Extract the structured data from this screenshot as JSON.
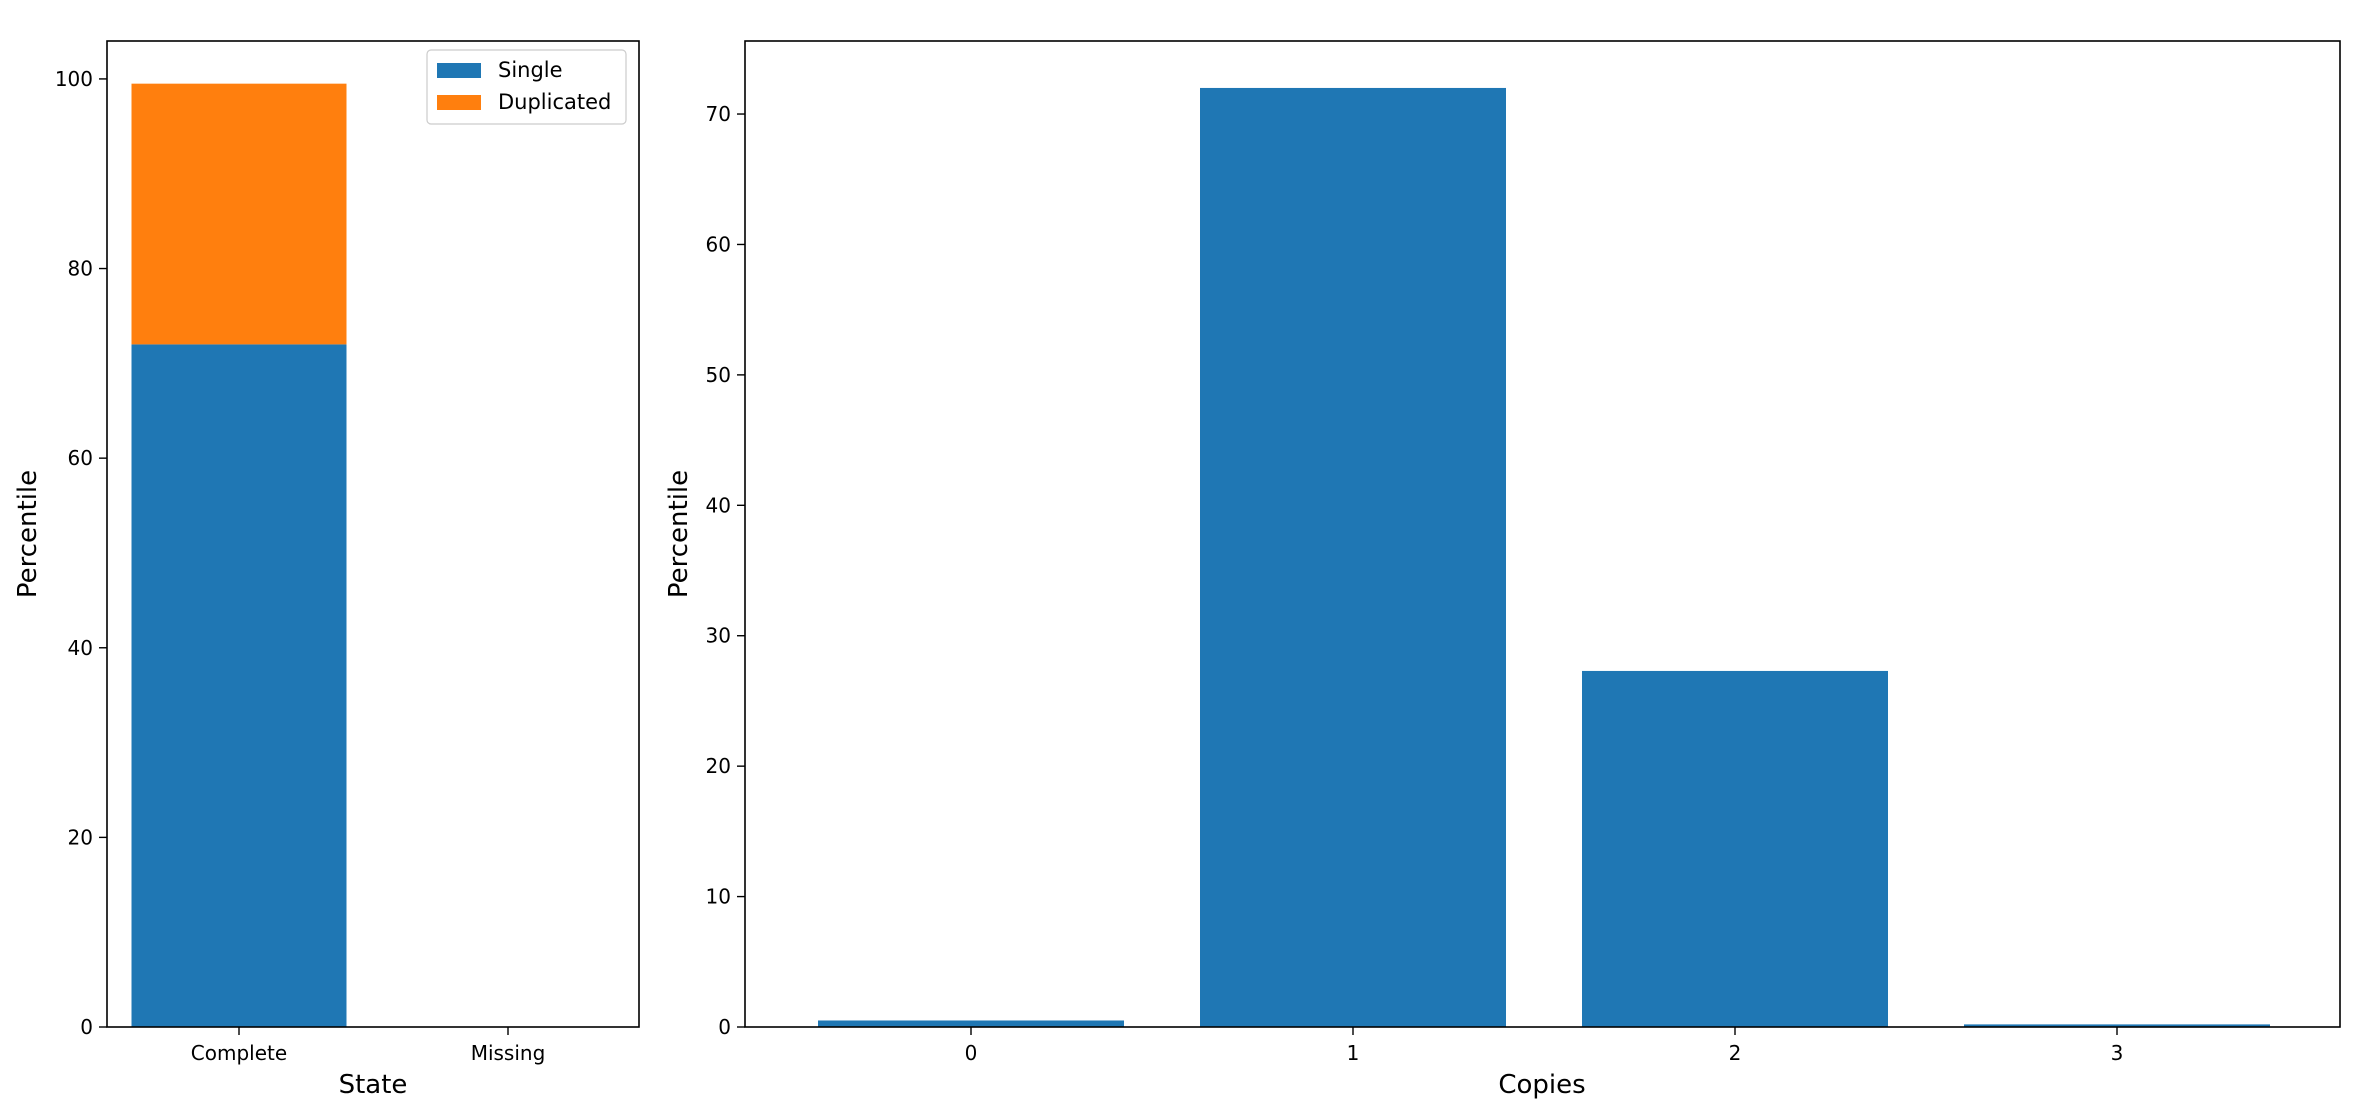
{
  "chart_data": [
    {
      "type": "bar",
      "stacked": true,
      "categories": [
        "Complete",
        "Missing"
      ],
      "series": [
        {
          "name": "Single",
          "values": [
            72.0,
            0.0
          ],
          "color": "#1f77b4"
        },
        {
          "name": "Duplicated",
          "values": [
            27.5,
            0.0
          ],
          "color": "#ff7f0e"
        }
      ],
      "xlabel": "State",
      "ylabel": "Percentile",
      "ylim": [
        0,
        104
      ],
      "yticks": [
        0,
        20,
        40,
        60,
        80,
        100
      ],
      "legend": "top-right",
      "grid": false
    },
    {
      "type": "bar",
      "categories": [
        "0",
        "1",
        "2",
        "3"
      ],
      "series": [
        {
          "values": [
            0.5,
            72.0,
            27.3,
            0.2
          ],
          "color": "#1f77b4"
        }
      ],
      "xlabel": "Copies",
      "ylabel": "Percentile",
      "ylim": [
        0,
        75.6
      ],
      "yticks": [
        0,
        10,
        20,
        30,
        40,
        50,
        60,
        70
      ],
      "legend": "none",
      "grid": false
    }
  ]
}
